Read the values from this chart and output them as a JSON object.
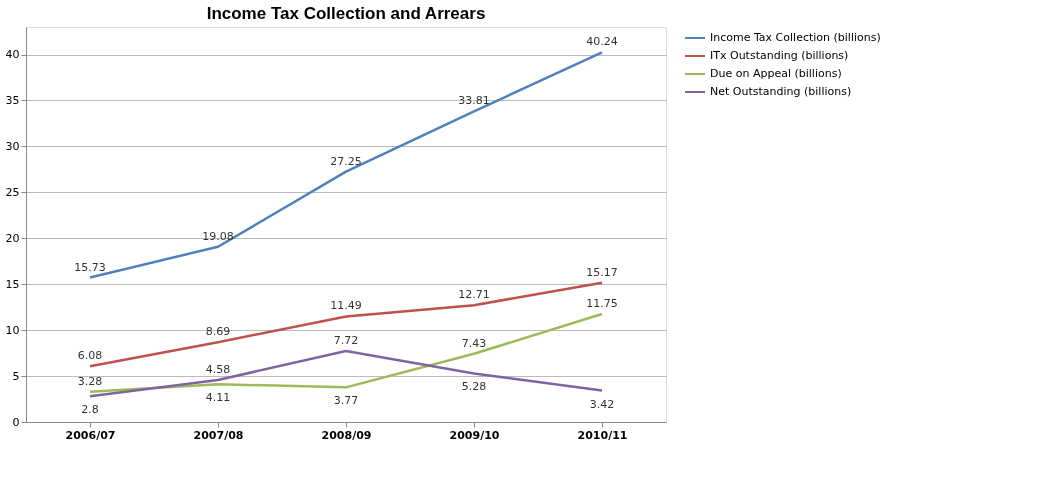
{
  "chart_data": {
    "type": "line",
    "title": "Income Tax Collection and Arrears",
    "categories": [
      "2006/07",
      "2007/08",
      "2008/09",
      "2009/10",
      "2010/11"
    ],
    "series": [
      {
        "name": "Income Tax  Collection (billions)",
        "color": "#4f81bd",
        "values": [
          15.73,
          19.08,
          27.25,
          33.81,
          40.24
        ]
      },
      {
        "name": "ITx Outstanding (billions)",
        "color": "#c0504d",
        "values": [
          6.08,
          8.69,
          11.49,
          12.71,
          15.17
        ]
      },
      {
        "name": "Due on Appeal (billions)",
        "color": "#9bbb59",
        "values": [
          3.28,
          4.11,
          3.77,
          7.43,
          11.75
        ]
      },
      {
        "name": "Net Outstanding (billions)",
        "color": "#8064a2",
        "values": [
          2.8,
          4.58,
          7.72,
          5.28,
          3.42
        ]
      }
    ],
    "ylim": [
      0,
      43
    ],
    "yticks": [
      0,
      5,
      10,
      15,
      20,
      25,
      30,
      35,
      40
    ],
    "grid": "y",
    "legend": "right",
    "data_labels": true,
    "marker": "none",
    "line_style": "solid"
  }
}
